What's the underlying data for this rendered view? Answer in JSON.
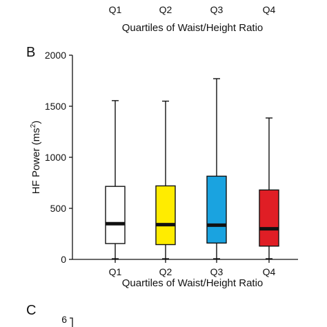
{
  "top_panel": {
    "tick_labels": [
      "Q1",
      "Q2",
      "Q3",
      "Q4"
    ],
    "xlabel": "Quartiles of Waist/Height Ratio"
  },
  "panel_c": {
    "letter": "C",
    "first_y_tick": "6"
  },
  "chart_data": {
    "type": "box",
    "panel_letter": "B",
    "categories": [
      "Q1",
      "Q2",
      "Q3",
      "Q4"
    ],
    "xlabel": "Quartiles of Waist/Height Ratio",
    "ylabel_main": "HF Power (ms",
    "ylabel_sup": "2",
    "ylabel_close": ")",
    "ylim": [
      0,
      2000
    ],
    "yticks": [
      0,
      500,
      1000,
      1500,
      2000
    ],
    "ytick_labels": [
      "0",
      "500",
      "1000",
      "1500",
      "2000"
    ],
    "boxes": [
      {
        "name": "Q1",
        "whisker_low": 0,
        "q1": 155,
        "median": 350,
        "q3": 715,
        "whisker_high": 1555,
        "color": "#ffffff"
      },
      {
        "name": "Q2",
        "whisker_low": 0,
        "q1": 145,
        "median": 340,
        "q3": 720,
        "whisker_high": 1550,
        "color": "#ffec00"
      },
      {
        "name": "Q3",
        "whisker_low": 0,
        "q1": 160,
        "median": 335,
        "q3": 815,
        "whisker_high": 1770,
        "color": "#1aa3e0"
      },
      {
        "name": "Q4",
        "whisker_low": 0,
        "q1": 130,
        "median": 300,
        "q3": 680,
        "whisker_high": 1385,
        "color": "#e01e25"
      }
    ]
  }
}
